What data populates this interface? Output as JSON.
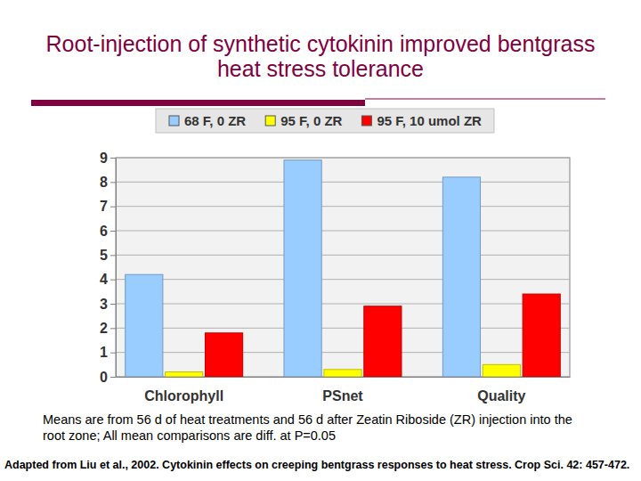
{
  "chart_data": {
    "type": "bar",
    "title": "Root-injection of synthetic cytokinin improved bentgrass heat stress tolerance",
    "categories": [
      "Chlorophyll",
      "PSnet",
      "Quality"
    ],
    "series": [
      {
        "name": "68 F, 0 ZR",
        "color": "#99ccff",
        "values": [
          4.2,
          8.9,
          8.2
        ]
      },
      {
        "name": "95 F, 0 ZR",
        "color": "#ffff00",
        "values": [
          0.2,
          0.3,
          0.5
        ]
      },
      {
        "name": "95 F, 10 umol ZR",
        "color": "#ff0000",
        "values": [
          1.8,
          2.9,
          3.4
        ]
      }
    ],
    "ylim": [
      0,
      9
    ],
    "yticks": [
      0,
      1,
      2,
      3,
      4,
      5,
      6,
      7,
      8,
      9
    ],
    "grid": true,
    "legend": "top",
    "annotations": [
      "Means are from 56 d of heat treatments and 56 d after Zeatin Riboside (ZR) injection into the root zone; All mean comparisons are diff. at P=0.05",
      "Adapted from Liu et al., 2002. Cytokinin effects on creeping bentgrass responses to heat stress. Crop Sci. 42: 457-472."
    ]
  }
}
